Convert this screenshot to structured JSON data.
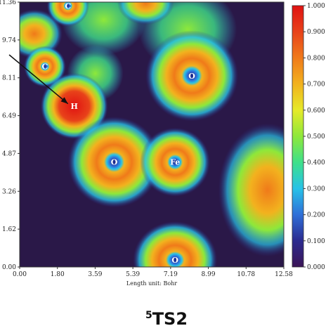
{
  "caption": {
    "superscript": "5",
    "label": "TS2"
  },
  "chart_data": {
    "type": "heatmap",
    "xlabel": "Length unit: Bohr",
    "ylabel": "",
    "x_ticks": [
      "0.00",
      "1.80",
      "3.59",
      "5.39",
      "7.19",
      "8.99",
      "10.78",
      "12.58"
    ],
    "y_ticks": [
      "0.00",
      "1.62",
      "3.26",
      "4.87",
      "6.49",
      "8.11",
      "9.74",
      "11.36"
    ],
    "xlim": [
      0,
      12.58
    ],
    "ylim": [
      0,
      11.36
    ],
    "colorbar": {
      "ticks": [
        "1.000",
        "0.900",
        "0.800",
        "0.700",
        "0.600",
        "0.500",
        "0.400",
        "0.300",
        "0.200",
        "0.100",
        "0.000"
      ],
      "range": [
        0,
        1
      ],
      "colors": [
        "#3b1456",
        "#2b2a8f",
        "#2f6fd8",
        "#27c2e8",
        "#3ee08a",
        "#8ee83a",
        "#e6ea2a",
        "#f2b21e",
        "#f07a1a",
        "#e8421a",
        "#e01212"
      ]
    },
    "atoms": [
      {
        "symbol": "C",
        "x": 2.3,
        "y": 11.2
      },
      {
        "symbol": "C",
        "x": 1.2,
        "y": 8.6
      },
      {
        "symbol": "H",
        "x": 2.6,
        "y": 6.9
      },
      {
        "symbol": "O",
        "x": 8.2,
        "y": 8.2
      },
      {
        "symbol": "O",
        "x": 4.5,
        "y": 4.5
      },
      {
        "symbol": "Fe",
        "x": 7.4,
        "y": 4.5
      },
      {
        "symbol": "O",
        "x": 7.4,
        "y": 0.3
      }
    ],
    "annotations": [
      {
        "type": "arrow",
        "from": [
          -0.5,
          9.1
        ],
        "to": [
          2.3,
          7.0
        ]
      }
    ]
  }
}
